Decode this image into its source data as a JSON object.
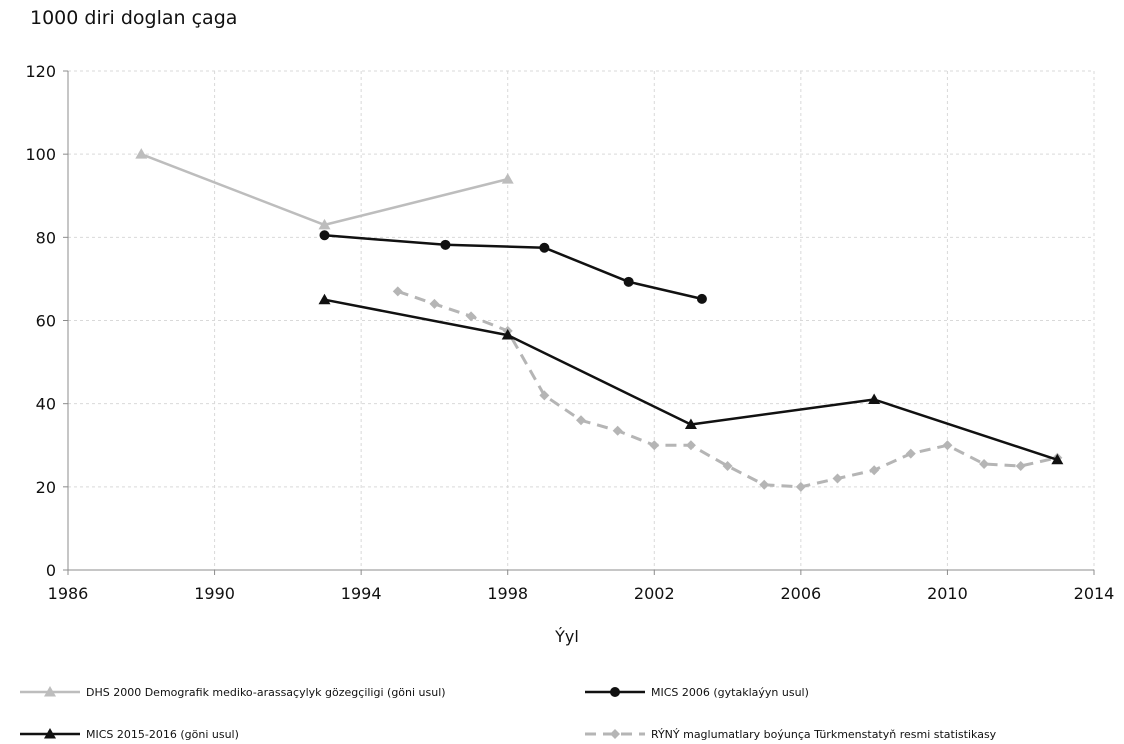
{
  "chart_data": {
    "type": "line",
    "title": "1000 diri doglan çaga",
    "xlabel": "Ýyl",
    "ylabel": "",
    "xlim": [
      1986,
      2014
    ],
    "ylim": [
      0,
      120
    ],
    "xticks": [
      1986,
      1990,
      1994,
      1998,
      2002,
      2006,
      2010,
      2014
    ],
    "yticks": [
      0,
      20,
      40,
      60,
      80,
      100,
      120
    ],
    "grid": true,
    "legend_position": "bottom",
    "series": [
      {
        "name": "DHS 2000 Demografik mediko-arassaçylyk gözegçiligi (göni usul)",
        "color": "#bdbdbd",
        "line_style": "solid",
        "marker": "triangle",
        "points": [
          {
            "x": 1988,
            "y": 100
          },
          {
            "x": 1993,
            "y": 83
          },
          {
            "x": 1998,
            "y": 94
          }
        ]
      },
      {
        "name": "MICS 2006 (gytaklaýyn usul)",
        "color": "#111111",
        "line_style": "solid",
        "marker": "circle",
        "points": [
          {
            "x": 1993,
            "y": 80.5
          },
          {
            "x": 1996.3,
            "y": 78.2
          },
          {
            "x": 1999,
            "y": 77.5
          },
          {
            "x": 2001.3,
            "y": 69.3
          },
          {
            "x": 2003.3,
            "y": 65.2
          }
        ]
      },
      {
        "name": "MICS 2015-2016 (göni usul)",
        "color": "#111111",
        "line_style": "solid",
        "marker": "triangle",
        "points": [
          {
            "x": 1993,
            "y": 65
          },
          {
            "x": 1998,
            "y": 56.5
          },
          {
            "x": 2003,
            "y": 35
          },
          {
            "x": 2008,
            "y": 41
          },
          {
            "x": 2013,
            "y": 26.5
          }
        ]
      },
      {
        "name": "RÝNÝ maglumatlary boýunça Türkmenstatyň resmi statistikasy",
        "color": "#b5b5b5",
        "line_style": "dashed",
        "marker": "diamond",
        "points": [
          {
            "x": 1995,
            "y": 67
          },
          {
            "x": 1996,
            "y": 64
          },
          {
            "x": 1997,
            "y": 61
          },
          {
            "x": 1998,
            "y": 57.5
          },
          {
            "x": 1999,
            "y": 42
          },
          {
            "x": 2000,
            "y": 36
          },
          {
            "x": 2001,
            "y": 33.5
          },
          {
            "x": 2002,
            "y": 30
          },
          {
            "x": 2003,
            "y": 30
          },
          {
            "x": 2004,
            "y": 25
          },
          {
            "x": 2005,
            "y": 20.5
          },
          {
            "x": 2006,
            "y": 20
          },
          {
            "x": 2007,
            "y": 22
          },
          {
            "x": 2008,
            "y": 24
          },
          {
            "x": 2009,
            "y": 28
          },
          {
            "x": 2010,
            "y": 30
          },
          {
            "x": 2011,
            "y": 25.5
          },
          {
            "x": 2012,
            "y": 25
          },
          {
            "x": 2013,
            "y": 27
          }
        ]
      }
    ]
  }
}
